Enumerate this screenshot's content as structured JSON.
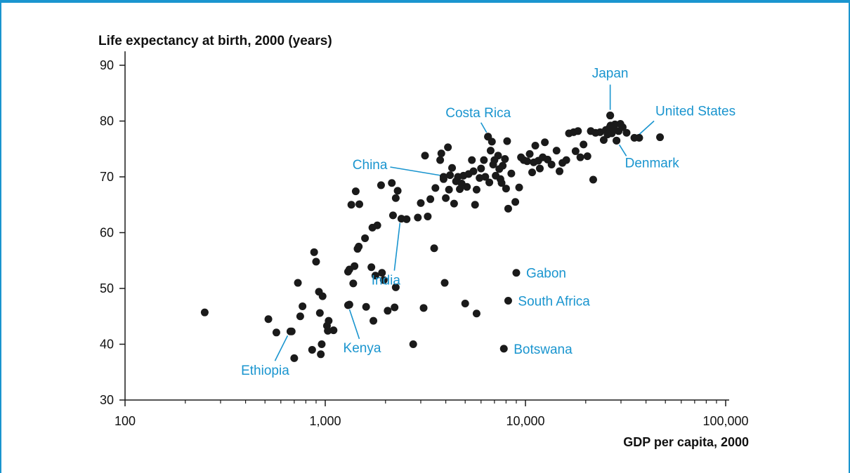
{
  "chart_data": {
    "type": "scatter",
    "title": "Life expectancy at birth, 2000 (years)",
    "xlabel": "GDP per capita, 2000",
    "ylabel": "Life expectancy at birth, 2000 (years)",
    "x_scale": "log",
    "xlim": [
      100,
      150000
    ],
    "ylim": [
      30,
      92
    ],
    "x_ticks": [
      {
        "value": 100,
        "label": "100"
      },
      {
        "value": 1000,
        "label": "1,000"
      },
      {
        "value": 10000,
        "label": "10,000"
      },
      {
        "value": 100000,
        "label": "100,000"
      }
    ],
    "y_ticks": [
      {
        "value": 30,
        "label": "30"
      },
      {
        "value": 40,
        "label": "40"
      },
      {
        "value": 50,
        "label": "50"
      },
      {
        "value": 60,
        "label": "60"
      },
      {
        "value": 70,
        "label": "70"
      },
      {
        "value": 80,
        "label": "80"
      },
      {
        "value": 90,
        "label": "90"
      }
    ],
    "grid": false,
    "marker_color": "#1a1a1a",
    "annotation_color": "#1a95cf",
    "annotations": [
      {
        "label": "Japan",
        "x": 26500,
        "y": 81.0
      },
      {
        "label": "Costa Rica",
        "x": 6500,
        "y": 77.2
      },
      {
        "label": "United States",
        "x": 35000,
        "y": 77.0
      },
      {
        "label": "Denmark",
        "x": 28500,
        "y": 76.5
      },
      {
        "label": "China",
        "x": 3900,
        "y": 70.0
      },
      {
        "label": "India",
        "x": 2400,
        "y": 62.5
      },
      {
        "label": "Gabon",
        "x": 9000,
        "y": 52.8
      },
      {
        "label": "South Africa",
        "x": 8200,
        "y": 47.8
      },
      {
        "label": "Botswana",
        "x": 7800,
        "y": 39.2
      },
      {
        "label": "Kenya",
        "x": 1300,
        "y": 47.0
      },
      {
        "label": "Ethiopia",
        "x": 670,
        "y": 42.3
      }
    ],
    "points": [
      [
        250,
        45.7
      ],
      [
        520,
        44.5
      ],
      [
        570,
        42.1
      ],
      [
        680,
        42.3
      ],
      [
        700,
        37.5
      ],
      [
        730,
        51.0
      ],
      [
        750,
        45.0
      ],
      [
        770,
        46.8
      ],
      [
        860,
        39.0
      ],
      [
        880,
        56.5
      ],
      [
        900,
        54.8
      ],
      [
        930,
        49.4
      ],
      [
        940,
        45.6
      ],
      [
        950,
        38.2
      ],
      [
        960,
        40.0
      ],
      [
        970,
        48.6
      ],
      [
        1020,
        43.3
      ],
      [
        1030,
        42.4
      ],
      [
        1040,
        44.2
      ],
      [
        1100,
        42.5
      ],
      [
        1300,
        53.0
      ],
      [
        1320,
        47.1
      ],
      [
        1320,
        53.4
      ],
      [
        1350,
        65.0
      ],
      [
        1380,
        50.9
      ],
      [
        1400,
        54.0
      ],
      [
        1420,
        67.4
      ],
      [
        1450,
        57.1
      ],
      [
        1470,
        57.5
      ],
      [
        1480,
        65.1
      ],
      [
        1580,
        59.0
      ],
      [
        1600,
        46.7
      ],
      [
        1700,
        53.8
      ],
      [
        1720,
        60.9
      ],
      [
        1740,
        44.2
      ],
      [
        1780,
        52.3
      ],
      [
        1820,
        61.3
      ],
      [
        1900,
        68.5
      ],
      [
        1920,
        52.8
      ],
      [
        1960,
        51.5
      ],
      [
        2050,
        46.0
      ],
      [
        2150,
        68.9
      ],
      [
        2180,
        63.1
      ],
      [
        2220,
        46.6
      ],
      [
        2250,
        50.2
      ],
      [
        2250,
        66.2
      ],
      [
        2300,
        67.5
      ],
      [
        2550,
        62.4
      ],
      [
        2750,
        40.0
      ],
      [
        2900,
        62.7
      ],
      [
        3000,
        65.3
      ],
      [
        3100,
        46.5
      ],
      [
        3150,
        73.8
      ],
      [
        3250,
        62.9
      ],
      [
        3350,
        66.0
      ],
      [
        3500,
        57.2
      ],
      [
        3550,
        68.0
      ],
      [
        3750,
        73.0
      ],
      [
        3800,
        74.2
      ],
      [
        3900,
        69.6
      ],
      [
        3950,
        51.0
      ],
      [
        4000,
        66.2
      ],
      [
        4100,
        75.3
      ],
      [
        4150,
        67.7
      ],
      [
        4200,
        70.3
      ],
      [
        4300,
        71.6
      ],
      [
        4400,
        65.2
      ],
      [
        4500,
        69.2
      ],
      [
        4600,
        70.0
      ],
      [
        4700,
        67.8
      ],
      [
        4800,
        68.8
      ],
      [
        4900,
        70.2
      ],
      [
        5000,
        47.3
      ],
      [
        5100,
        68.2
      ],
      [
        5200,
        70.5
      ],
      [
        5400,
        73.0
      ],
      [
        5500,
        71.0
      ],
      [
        5600,
        65.0
      ],
      [
        5700,
        45.5
      ],
      [
        5700,
        67.7
      ],
      [
        5900,
        69.8
      ],
      [
        6000,
        71.5
      ],
      [
        6200,
        73.0
      ],
      [
        6300,
        70.0
      ],
      [
        6500,
        77.2
      ],
      [
        6600,
        69.0
      ],
      [
        6700,
        74.7
      ],
      [
        6800,
        76.3
      ],
      [
        6900,
        72.2
      ],
      [
        7000,
        73.0
      ],
      [
        7100,
        70.2
      ],
      [
        7300,
        73.8
      ],
      [
        7400,
        71.4
      ],
      [
        7500,
        69.6
      ],
      [
        7600,
        68.9
      ],
      [
        7700,
        72.0
      ],
      [
        7900,
        73.2
      ],
      [
        8000,
        67.9
      ],
      [
        8100,
        76.4
      ],
      [
        8200,
        64.3
      ],
      [
        8500,
        70.6
      ],
      [
        8900,
        65.5
      ],
      [
        9300,
        68.1
      ],
      [
        9500,
        73.5
      ],
      [
        9800,
        73.0
      ],
      [
        10200,
        72.8
      ],
      [
        10500,
        74.1
      ],
      [
        10800,
        70.8
      ],
      [
        11000,
        72.6
      ],
      [
        11200,
        75.6
      ],
      [
        11600,
        72.9
      ],
      [
        11800,
        71.5
      ],
      [
        12200,
        73.5
      ],
      [
        12500,
        76.2
      ],
      [
        12900,
        73.1
      ],
      [
        13500,
        72.2
      ],
      [
        14300,
        74.7
      ],
      [
        14800,
        71.0
      ],
      [
        15300,
        72.5
      ],
      [
        16000,
        73.0
      ],
      [
        16500,
        77.8
      ],
      [
        17400,
        78.0
      ],
      [
        17800,
        74.6
      ],
      [
        18300,
        78.2
      ],
      [
        18800,
        73.5
      ],
      [
        19500,
        75.8
      ],
      [
        20400,
        73.7
      ],
      [
        21200,
        78.2
      ],
      [
        21800,
        69.5
      ],
      [
        22400,
        77.9
      ],
      [
        23600,
        78.0
      ],
      [
        24600,
        76.6
      ],
      [
        25200,
        78.4
      ],
      [
        25700,
        77.6
      ],
      [
        26300,
        78.8
      ],
      [
        26600,
        79.2
      ],
      [
        27000,
        77.8
      ],
      [
        27500,
        78.6
      ],
      [
        28000,
        79.4
      ],
      [
        28500,
        76.5
      ],
      [
        29200,
        78.2
      ],
      [
        29800,
        79.5
      ],
      [
        30600,
        78.9
      ],
      [
        32000,
        77.9
      ],
      [
        26500,
        81.0
      ],
      [
        37000,
        77.0
      ],
      [
        47000,
        77.1
      ]
    ]
  }
}
